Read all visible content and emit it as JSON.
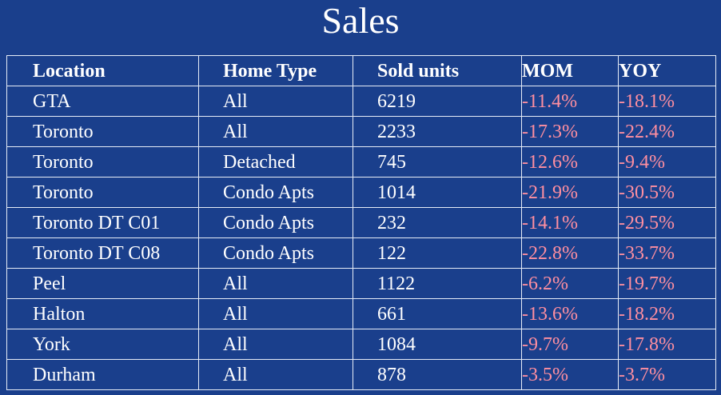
{
  "title": "Sales",
  "colors": {
    "background": "#1a3f8c",
    "text": "#ffffff",
    "negative": "#ff8fa0"
  },
  "table": {
    "headers": [
      "Location",
      "Home Type",
      "Sold units",
      "MOM",
      "YOY"
    ],
    "rows": [
      [
        "GTA",
        "All",
        "6219",
        "-11.4%",
        "-18.1%"
      ],
      [
        "Toronto",
        "All",
        "2233",
        "-17.3%",
        "-22.4%"
      ],
      [
        "Toronto",
        "Detached",
        "745",
        "-12.6%",
        "-9.4%"
      ],
      [
        "Toronto",
        "Condo Apts",
        "1014",
        "-21.9%",
        "-30.5%"
      ],
      [
        "Toronto DT C01",
        "Condo Apts",
        "232",
        "-14.1%",
        "-29.5%"
      ],
      [
        "Toronto DT C08",
        "Condo Apts",
        "122",
        "-22.8%",
        "-33.7%"
      ],
      [
        "Peel",
        "All",
        "1122",
        "-6.2%",
        "-19.7%"
      ],
      [
        "Halton",
        "All",
        "661",
        "-13.6%",
        "-18.2%"
      ],
      [
        "York",
        "All",
        "1084",
        "-9.7%",
        "-17.8%"
      ],
      [
        "Durham",
        "All",
        "878",
        "-3.5%",
        "-3.7%"
      ]
    ]
  }
}
